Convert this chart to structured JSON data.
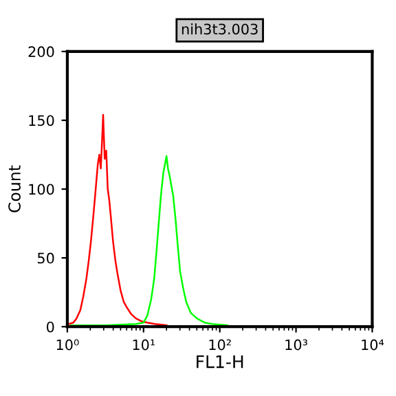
{
  "chart_data": {
    "type": "line",
    "title": "nih3t3.003",
    "xlabel": "FL1-H",
    "ylabel": "Count",
    "log": "x",
    "xlim": [
      1,
      10000
    ],
    "xticks": [
      {
        "value": 1,
        "label": "10⁰"
      },
      {
        "value": 10,
        "label": "10¹"
      },
      {
        "value": 100,
        "label": "10²"
      },
      {
        "value": 1000,
        "label": "10³"
      },
      {
        "value": 10000,
        "label": "10⁴"
      }
    ],
    "ylim": [
      0,
      200
    ],
    "yticks": [
      0,
      50,
      100,
      150,
      200
    ],
    "grid": false,
    "marker": "none",
    "line_style": "solid",
    "series": [
      {
        "color": "#ff0000",
        "x": [
          1.05,
          1.2,
          1.32,
          1.48,
          1.62,
          1.78,
          1.91,
          2.04,
          2.19,
          2.34,
          2.51,
          2.63,
          2.75,
          2.88,
          2.95,
          3.09,
          3.24,
          3.39,
          3.55,
          3.72,
          3.98,
          4.27,
          4.57,
          5.01,
          5.5,
          6.03,
          6.92,
          7.94,
          9.33,
          11.2,
          14.1,
          20
        ],
        "values": [
          2,
          3,
          6,
          12,
          22,
          35,
          48,
          62,
          80,
          98,
          118,
          125,
          115,
          140,
          154,
          122,
          128,
          100,
          92,
          80,
          62,
          48,
          38,
          26,
          18,
          14,
          9,
          6,
          4,
          3,
          2,
          1
        ]
      },
      {
        "color": "#00ff00",
        "x": [
          1.12,
          3.16,
          7.94,
          10,
          11.2,
          12.6,
          13.8,
          14.8,
          15.8,
          17.0,
          18.2,
          19.1,
          20,
          20.9,
          21.9,
          22.9,
          24.5,
          26.3,
          28.2,
          30.2,
          33.1,
          36.3,
          41.7,
          50.1,
          63.1,
          79.4,
          126
        ],
        "values": [
          1,
          1,
          2,
          3,
          8,
          20,
          35,
          55,
          75,
          97,
          112,
          118,
          124,
          115,
          110,
          104,
          95,
          78,
          58,
          40,
          28,
          18,
          10,
          6,
          3,
          2,
          1
        ]
      }
    ]
  }
}
